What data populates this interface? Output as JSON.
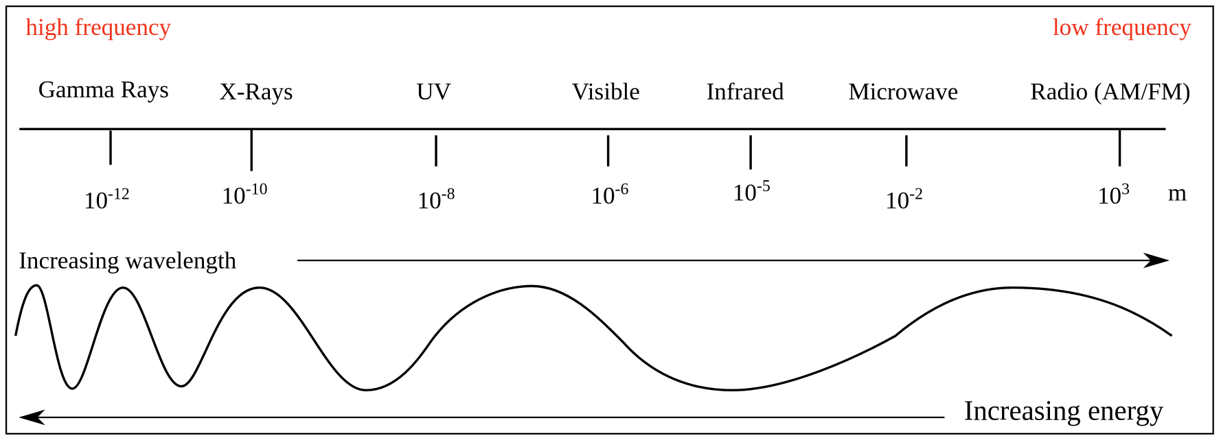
{
  "header": {
    "left": "high frequency",
    "right": "low frequency"
  },
  "bands": [
    {
      "name": "Gamma Rays",
      "wavelength": {
        "base": "10",
        "exponent": "-12"
      }
    },
    {
      "name": "X-Rays",
      "wavelength": {
        "base": "10",
        "exponent": "-10"
      }
    },
    {
      "name": "UV",
      "wavelength": {
        "base": "10",
        "exponent": "-8"
      }
    },
    {
      "name": "Visible",
      "wavelength": {
        "base": "10",
        "exponent": "-6"
      }
    },
    {
      "name": "Infrared",
      "wavelength": {
        "base": "10",
        "exponent": "-5"
      }
    },
    {
      "name": "Microwave",
      "wavelength": {
        "base": "10",
        "exponent": "-2"
      }
    },
    {
      "name": "Radio (AM/FM)",
      "wavelength": {
        "base": "10",
        "exponent": "3"
      }
    }
  ],
  "unit": "m",
  "arrows": {
    "wavelength": "Increasing wavelength",
    "energy": "Increasing energy"
  }
}
